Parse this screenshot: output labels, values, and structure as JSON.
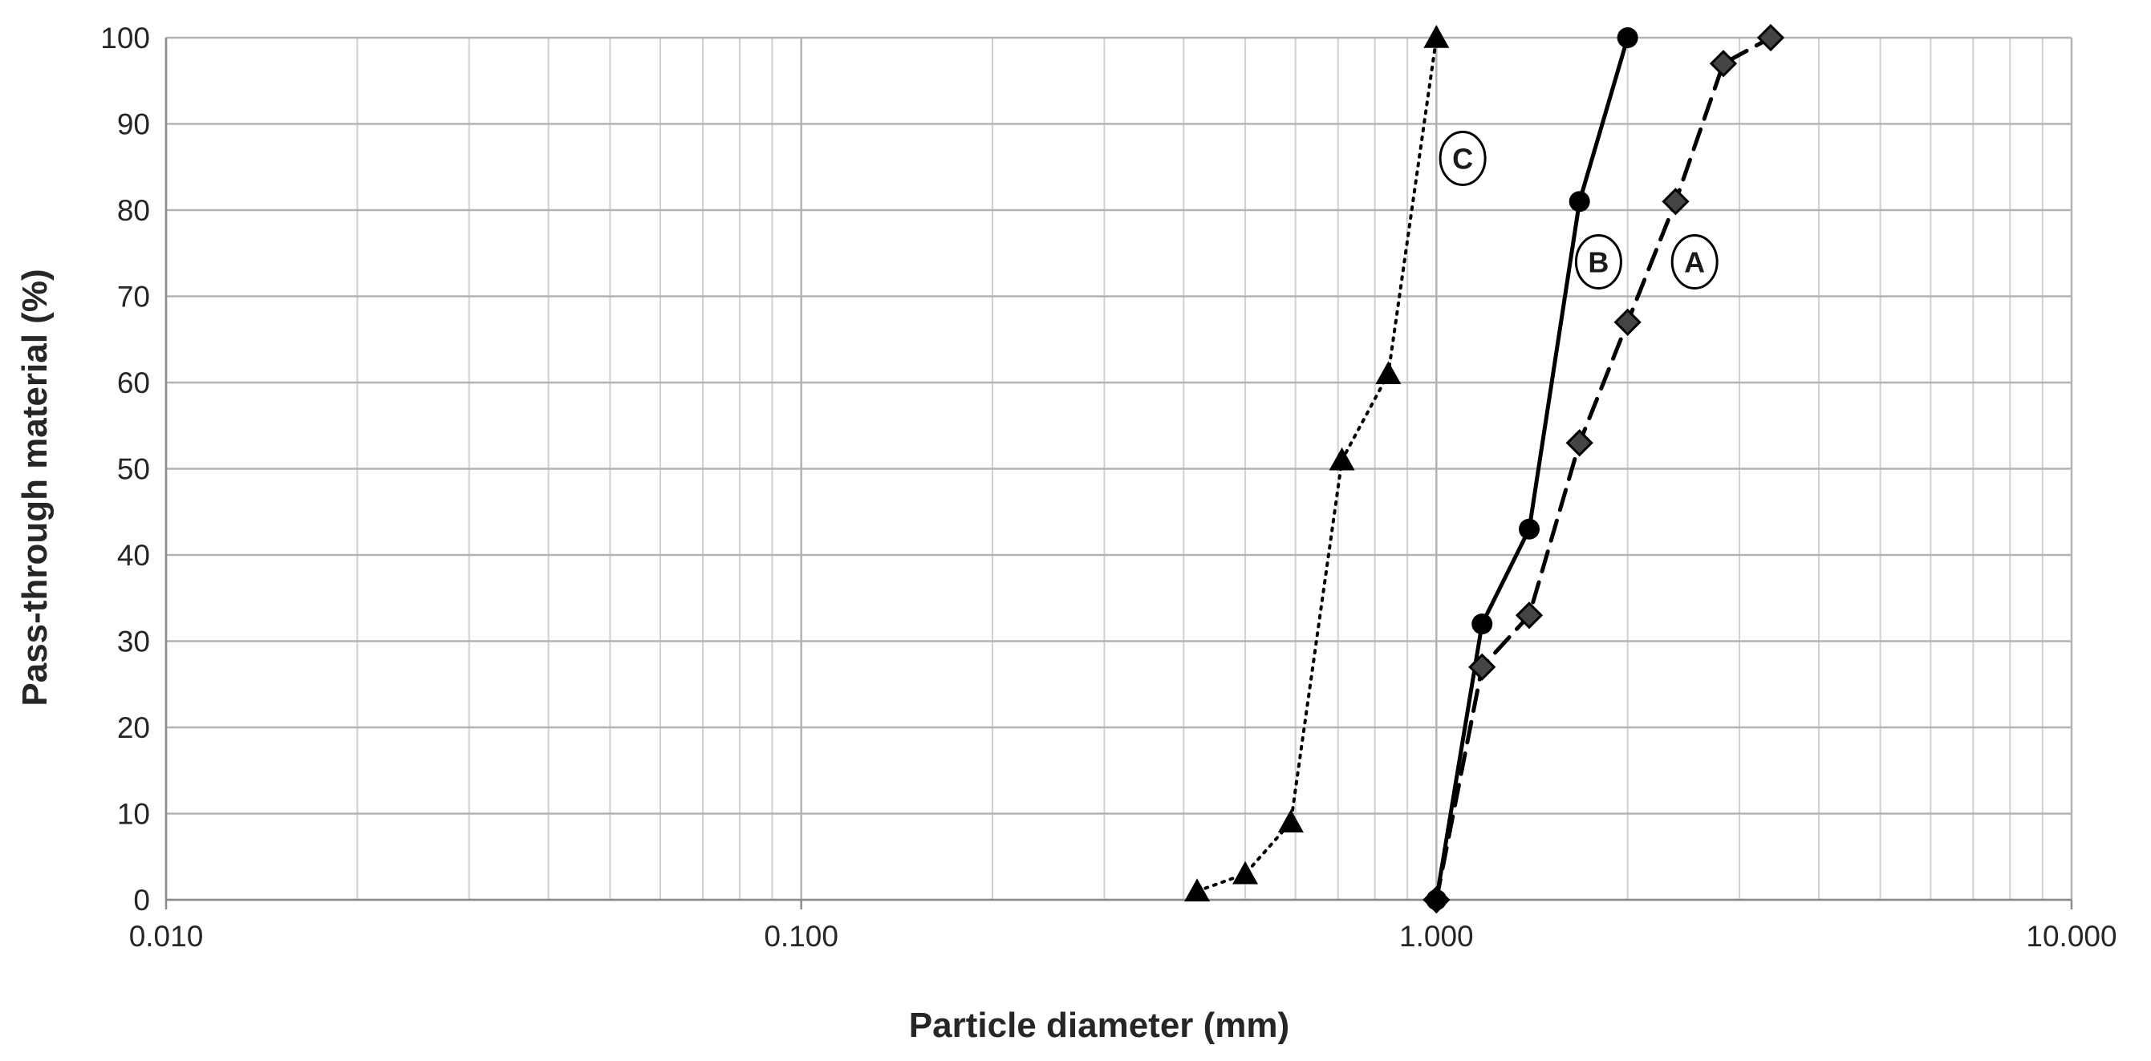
{
  "chart_data": {
    "type": "line",
    "title": "",
    "xlabel": "Particle diameter (mm)",
    "ylabel": "Pass-through material (%)",
    "x_scale": "log",
    "xlim": [
      0.01,
      10
    ],
    "ylim": [
      0,
      100
    ],
    "x_ticks": [
      0.01,
      0.1,
      1,
      10
    ],
    "x_tick_labels": [
      "0.010",
      "0.100",
      "1.000",
      "10.000"
    ],
    "y_ticks": [
      0,
      10,
      20,
      30,
      40,
      50,
      60,
      70,
      80,
      90,
      100
    ],
    "y_tick_labels": [
      "0",
      "10",
      "20",
      "30",
      "40",
      "50",
      "60",
      "70",
      "80",
      "90",
      "100"
    ],
    "grid": true,
    "legend": "none",
    "series": [
      {
        "name": "A",
        "label_at": [
          2.55,
          74
        ],
        "line_style": "dashed",
        "marker": "diamond",
        "x": [
          1.0,
          1.18,
          1.4,
          1.68,
          2.0,
          2.38,
          2.83,
          3.36
        ],
        "y": [
          0,
          27,
          33,
          53,
          67,
          81,
          97,
          100
        ]
      },
      {
        "name": "B",
        "label_at": [
          1.8,
          74
        ],
        "line_style": "solid",
        "marker": "circle",
        "x": [
          1.0,
          1.18,
          1.4,
          1.68,
          2.0
        ],
        "y": [
          0,
          32,
          43,
          81,
          100
        ]
      },
      {
        "name": "C",
        "label_at": [
          1.1,
          86
        ],
        "line_style": "dotted",
        "marker": "triangle",
        "x": [
          0.42,
          0.5,
          0.59,
          0.71,
          0.84,
          1.0
        ],
        "y": [
          1,
          3,
          9,
          51,
          61,
          100
        ]
      }
    ]
  }
}
